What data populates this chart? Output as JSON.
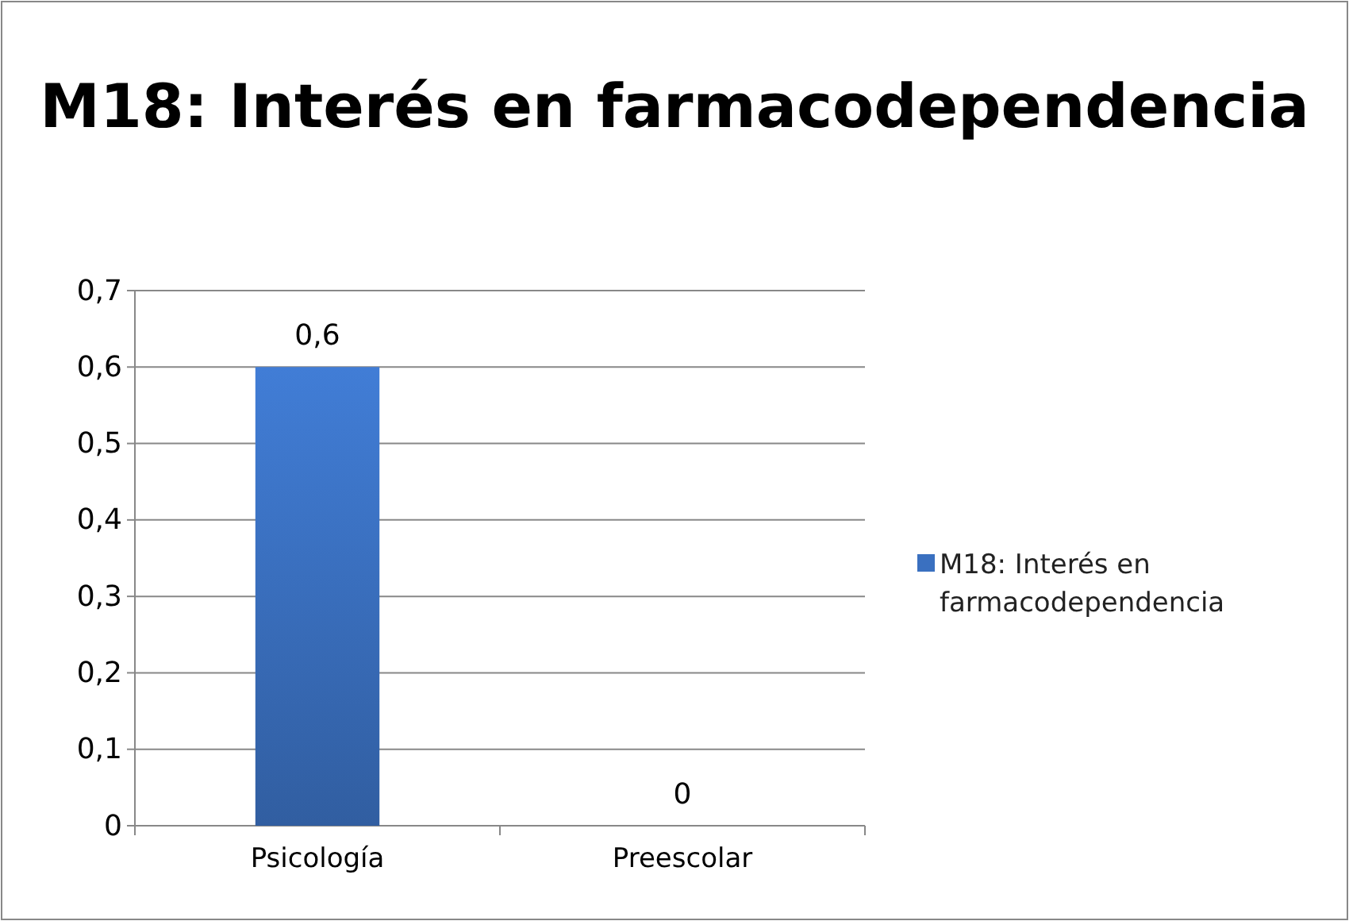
{
  "chart_data": {
    "type": "bar",
    "title": "M18: Interés en farmacodependencia",
    "categories": [
      "Psicología",
      "Preescolar"
    ],
    "series": [
      {
        "name": "M18: Interés en farmacodependencia",
        "color": "#3a70c0",
        "values": [
          0.6,
          0
        ],
        "value_labels": [
          "0,6",
          "0"
        ]
      }
    ],
    "ylim": [
      0,
      0.7
    ],
    "yticks": [
      {
        "value": 0,
        "label": "0"
      },
      {
        "value": 0.1,
        "label": "0,1"
      },
      {
        "value": 0.2,
        "label": "0,2"
      },
      {
        "value": 0.3,
        "label": "0,3"
      },
      {
        "value": 0.4,
        "label": "0,4"
      },
      {
        "value": 0.5,
        "label": "0,5"
      },
      {
        "value": 0.6,
        "label": "0,6"
      },
      {
        "value": 0.7,
        "label": "0,7"
      }
    ],
    "grid": "y",
    "legend": "right"
  }
}
